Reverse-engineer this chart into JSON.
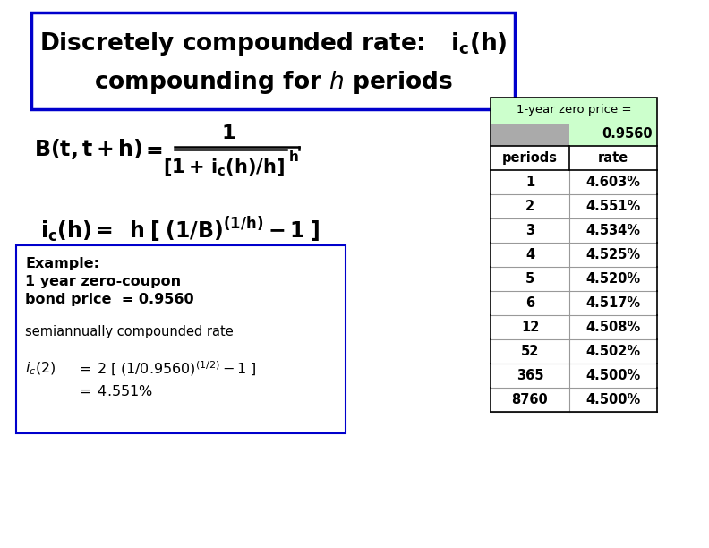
{
  "bg_color": "#ffffff",
  "title_box_color": "#0000cc",
  "table_header_bg": "#ccffcc",
  "table_gray_bg": "#aaaaaa",
  "table_periods": [
    "1",
    "2",
    "3",
    "4",
    "5",
    "6",
    "12",
    "52",
    "365",
    "8760"
  ],
  "table_rates": [
    "4.603%",
    "4.551%",
    "4.534%",
    "4.525%",
    "4.520%",
    "4.517%",
    "4.508%",
    "4.502%",
    "4.500%",
    "4.500%"
  ],
  "zero_price": "0.9560",
  "example_box_color": "#0000cc",
  "figsize": [
    7.92,
    6.12
  ],
  "dpi": 100
}
